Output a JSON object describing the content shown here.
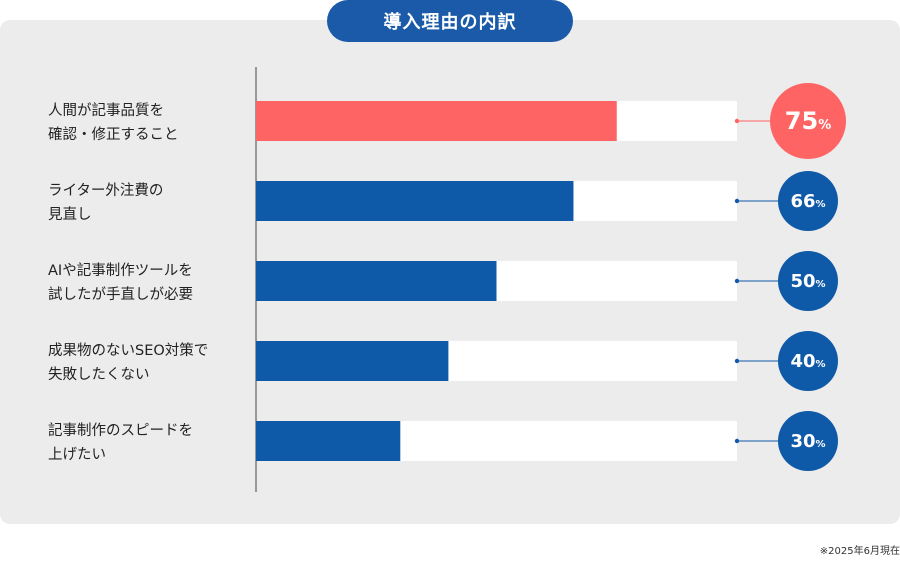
{
  "title": "導入理由の内訳",
  "note": "※2025年6月現在",
  "colors": {
    "accent": "#ff6464",
    "bar": "#0f5aa8",
    "track": "#ffffff",
    "panel": "#ececec",
    "axis": "#444444"
  },
  "chart_data": {
    "type": "bar",
    "orientation": "horizontal",
    "categories": [
      [
        "人間が記事品質を",
        "確認・修正すること"
      ],
      [
        "ライター外注費の",
        "見直し"
      ],
      [
        "AIや記事制作ツールを",
        "試したが手直しが必要"
      ],
      [
        "成果物のないSEO対策で",
        "失敗したくない"
      ],
      [
        "記事制作のスピードを",
        "上げたい"
      ]
    ],
    "values": [
      75,
      66,
      50,
      40,
      30
    ],
    "unit": "%",
    "xlim": [
      0,
      100
    ],
    "highlight_index": 0
  }
}
